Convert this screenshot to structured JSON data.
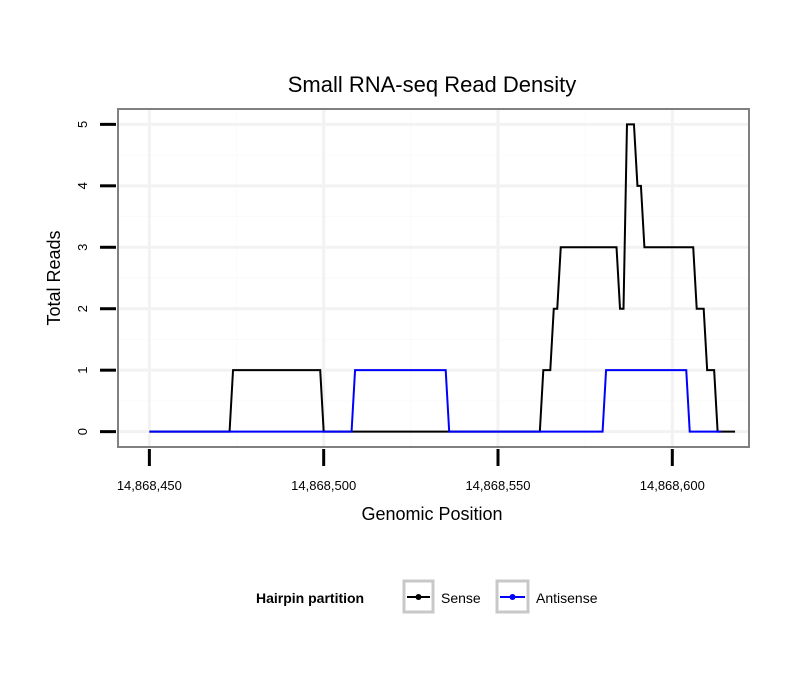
{
  "chart_data": {
    "type": "line",
    "title": "Small RNA-seq Read Density",
    "xlabel": "Genomic Position",
    "ylabel": "Total Reads",
    "xlim": [
      14868441,
      14868622
    ],
    "ylim": [
      -0.25,
      5.25
    ],
    "x_ticks": [
      14868450,
      14868500,
      14868550,
      14868600
    ],
    "x_tick_labels": [
      "14,868,450",
      "14,868,500",
      "14,868,550",
      "14,868,600"
    ],
    "y_ticks": [
      0,
      1,
      2,
      3,
      4,
      5
    ],
    "y_tick_labels": [
      "0",
      "1",
      "2",
      "3",
      "4",
      "5"
    ],
    "grid": true,
    "legend": {
      "title": "Hairpin partition",
      "placement": "bottom",
      "entries": [
        "Sense",
        "Antisense"
      ]
    },
    "series": [
      {
        "name": "Sense",
        "color": "#000000",
        "x": [
          14868450,
          14868473,
          14868474,
          14868499,
          14868500,
          14868562,
          14868563,
          14868565,
          14868566,
          14868567,
          14868568,
          14868571,
          14868584,
          14868585,
          14868586,
          14868587,
          14868589,
          14868590,
          14868591,
          14868592,
          14868606,
          14868607,
          14868609,
          14868610,
          14868612,
          14868613,
          14868614,
          14868618
        ],
        "values": [
          0,
          0,
          1,
          1,
          0,
          0,
          1,
          1,
          2,
          2,
          3,
          3,
          3,
          2,
          2,
          5,
          5,
          4,
          4,
          3,
          3,
          2,
          2,
          1,
          1,
          0,
          0,
          0
        ]
      },
      {
        "name": "Antisense",
        "color": "#0000ff",
        "x": [
          14868450,
          14868508,
          14868509,
          14868535,
          14868536,
          14868580,
          14868581,
          14868604,
          14868605,
          14868614
        ],
        "values": [
          0,
          0,
          1,
          1,
          0,
          0,
          1,
          1,
          0,
          0
        ]
      }
    ]
  }
}
